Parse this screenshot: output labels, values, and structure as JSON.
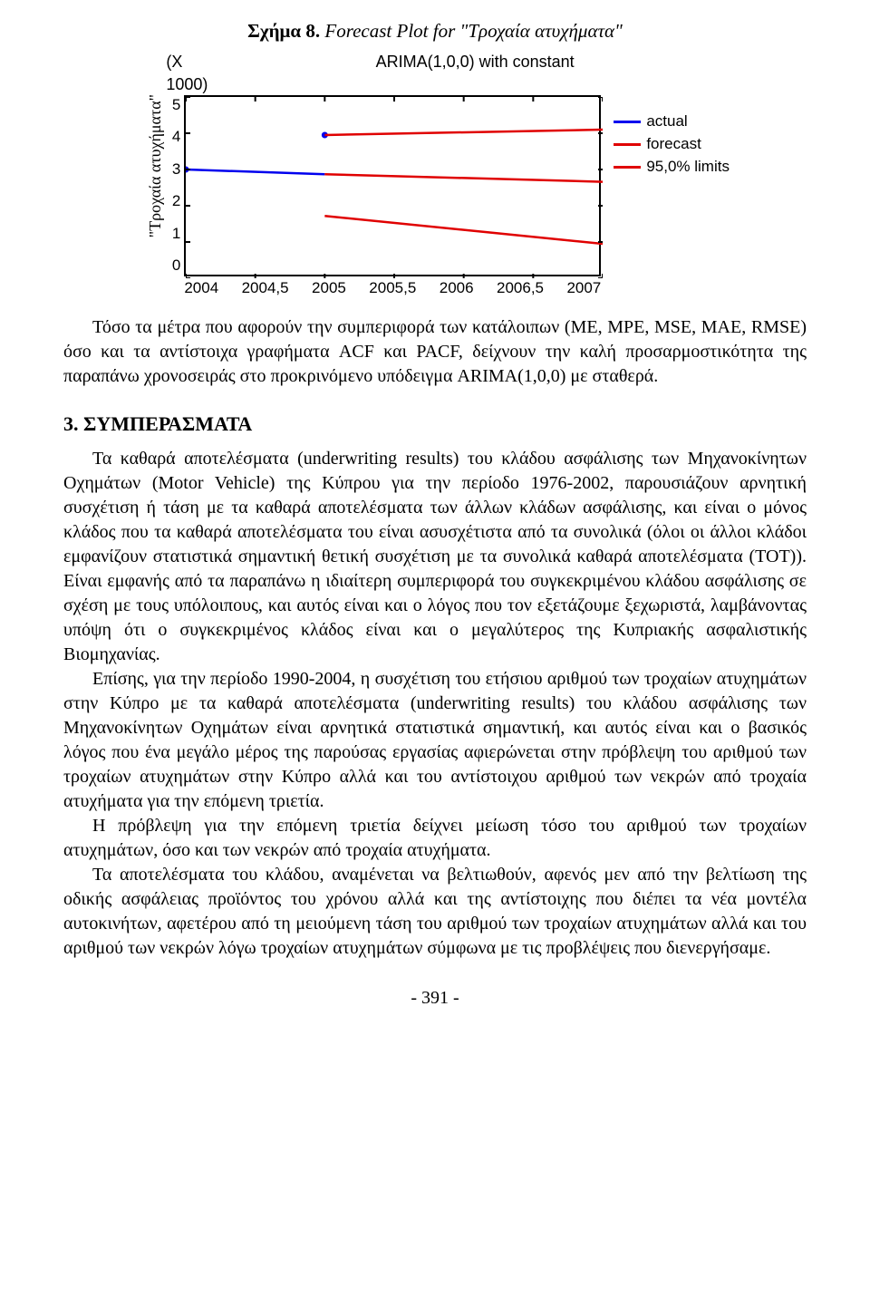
{
  "figure": {
    "caption_prefix": "Σχήμα 8.",
    "caption_rest": " Forecast Plot for \"Τροχαία ατυχήματα\"",
    "ylabel": "\"Τροχαία ατυχήματα\"",
    "x1000": "(X 1000)",
    "chart_title": "ARIMA(1,0,0) with constant",
    "yticks": [
      "5",
      "4",
      "3",
      "2",
      "1",
      "0"
    ],
    "xticks": [
      "2004",
      "2004,5",
      "2005",
      "2005,5",
      "2006",
      "2006,5",
      "2007"
    ],
    "legend": [
      {
        "label": "actual",
        "color": "#0000ee"
      },
      {
        "label": "forecast",
        "color": "#e00000"
      },
      {
        "label": "95,0% limits",
        "color": "#e00000"
      }
    ],
    "box_color": "#000000",
    "bg_color": "#ffffff",
    "series": {
      "actual": {
        "color": "#0000ee",
        "points": [
          [
            2004,
            3.0
          ],
          [
            2005,
            3.95
          ]
        ],
        "segments": [
          [
            [
              2004,
              3.0
            ],
            [
              2005,
              2.87
            ]
          ]
        ]
      },
      "forecast": {
        "color": "#e00000",
        "segments": [
          [
            [
              2005,
              3.95
            ],
            [
              2007,
              4.1
            ]
          ]
        ]
      },
      "limits_upper": {
        "color": "#e00000",
        "segments": [
          [
            [
              2005,
              2.87
            ],
            [
              2007,
              2.66
            ]
          ]
        ]
      },
      "limits_lower": {
        "color": "#e00000",
        "segments": [
          [
            [
              2005,
              1.72
            ],
            [
              2007,
              0.95
            ]
          ]
        ]
      }
    },
    "xlim": [
      2004,
      2007
    ],
    "ylim": [
      0,
      5
    ]
  },
  "para1": "Τόσο τα μέτρα που αφορούν την συμπεριφορά των κατάλοιπων (ME, MPE, MSE, MAE, RMSE) όσο και τα αντίστοιχα γραφήματα ACF και PACF, δείχνουν την καλή προσαρμοστικότητα της παραπάνω χρονοσειράς στο προκρινόμενο υπόδειγμα ARIMA(1,0,0) με σταθερά.",
  "heading": "3. ΣΥΜΠΕΡΑΣΜΑΤΑ",
  "para2": "Τα καθαρά αποτελέσματα (underwriting results) του κλάδου ασφάλισης των Μηχανοκίνητων Οχημάτων (Motor Vehicle) της Κύπρου για την περίοδο 1976-2002, παρουσιάζουν αρνητική συσχέτιση ή τάση με τα καθαρά αποτελέσματα των άλλων κλάδων ασφάλισης, και είναι ο μόνος κλάδος που τα καθαρά αποτελέσματα του είναι ασυσχέτιστα από τα συνολικά (όλοι οι άλλοι κλάδοι εμφανίζουν στατιστικά σημαντική θετική συσχέτιση με τα συνολικά καθαρά αποτελέσματα (TOT)). Είναι εμφανής από τα παραπάνω η ιδιαίτερη συμπεριφορά του συγκεκριμένου κλάδου ασφάλισης σε σχέση με τους υπόλοιπους, και αυτός είναι και ο λόγος που τον εξετάζουμε ξεχωριστά, λαμβάνοντας υπόψη ότι ο συγκεκριμένος κλάδος είναι και ο μεγαλύτερος της Κυπριακής ασφαλιστικής Βιομηχανίας.",
  "para3": "Επίσης, για την περίοδο 1990-2004, η συσχέτιση του ετήσιου αριθμού των τροχαίων ατυχημάτων στην Κύπρο με τα καθαρά αποτελέσματα (underwriting results) του κλάδου ασφάλισης των Μηχανοκίνητων Οχημάτων είναι αρνητικά στατιστικά σημαντική, και αυτός είναι και ο βασικός λόγος που ένα μεγάλο μέρος της παρούσας εργασίας αφιερώνεται στην πρόβλεψη του αριθμού των τροχαίων ατυχημάτων στην Κύπρο αλλά και του αντίστοιχου αριθμού των νεκρών από τροχαία ατυχήματα για την επόμενη τριετία.",
  "para4": "Η πρόβλεψη για την επόμενη τριετία δείχνει μείωση τόσο του αριθμού των τροχαίων ατυχημάτων, όσο και των νεκρών από τροχαία ατυχήματα.",
  "para5": "Τα αποτελέσματα του κλάδου, αναμένεται να βελτιωθούν, αφενός μεν από την βελτίωση της οδικής ασφάλειας προϊόντος του χρόνου αλλά και της αντίστοιχης που διέπει τα νέα μοντέλα αυτοκινήτων, αφετέρου από τη μειούμενη τάση του αριθμού των τροχαίων ατυχημάτων αλλά και του αριθμού των νεκρών λόγω τροχαίων ατυχημάτων σύμφωνα με τις προβλέψεις που διενεργήσαμε.",
  "page_number": "- 391 -"
}
